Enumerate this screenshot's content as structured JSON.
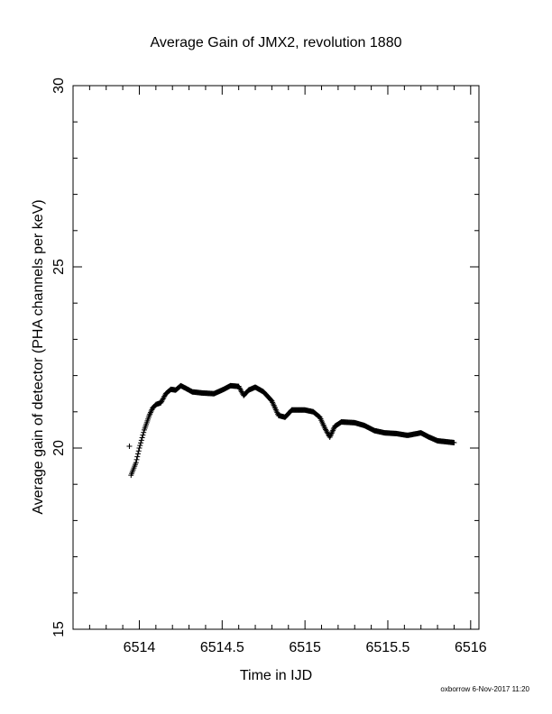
{
  "chart_data": {
    "type": "scatter",
    "title": "Average Gain of JMX2, revolution 1880",
    "xlabel": "Time in IJD",
    "ylabel": "Average gain of detector (PHA channels per keV)",
    "xlim": [
      6513.6,
      6516.05
    ],
    "ylim": [
      15,
      30
    ],
    "x_ticks": [
      6514,
      6514.5,
      6515,
      6515.5,
      6516
    ],
    "x_tick_labels": [
      "6514",
      "6514.5",
      "6515",
      "6515.5",
      "6516"
    ],
    "y_ticks": [
      15,
      20,
      25,
      30
    ],
    "y_tick_labels": [
      "15",
      "20",
      "25",
      "30"
    ],
    "marker": "plus",
    "grid": false,
    "series": [
      {
        "values_curve": [
          [
            6513.95,
            19.25
          ],
          [
            6513.98,
            19.6
          ],
          [
            6514.0,
            20.0
          ],
          [
            6514.03,
            20.5
          ],
          [
            6514.06,
            20.9
          ],
          [
            6514.08,
            21.1
          ],
          [
            6514.1,
            21.2
          ],
          [
            6514.13,
            21.25
          ],
          [
            6514.16,
            21.5
          ],
          [
            6514.19,
            21.62
          ],
          [
            6514.22,
            21.6
          ],
          [
            6514.25,
            21.72
          ],
          [
            6514.28,
            21.65
          ],
          [
            6514.32,
            21.55
          ],
          [
            6514.38,
            21.52
          ],
          [
            6514.45,
            21.5
          ],
          [
            6514.5,
            21.6
          ],
          [
            6514.55,
            21.72
          ],
          [
            6514.6,
            21.7
          ],
          [
            6514.63,
            21.45
          ],
          [
            6514.66,
            21.6
          ],
          [
            6514.7,
            21.68
          ],
          [
            6514.75,
            21.55
          ],
          [
            6514.8,
            21.3
          ],
          [
            6514.84,
            20.9
          ],
          [
            6514.88,
            20.85
          ],
          [
            6514.92,
            21.05
          ],
          [
            6515.0,
            21.05
          ],
          [
            6515.05,
            21.0
          ],
          [
            6515.09,
            20.85
          ],
          [
            6515.12,
            20.55
          ],
          [
            6515.15,
            20.3
          ],
          [
            6515.18,
            20.6
          ],
          [
            6515.22,
            20.72
          ],
          [
            6515.3,
            20.7
          ],
          [
            6515.36,
            20.62
          ],
          [
            6515.42,
            20.48
          ],
          [
            6515.48,
            20.42
          ],
          [
            6515.55,
            20.4
          ],
          [
            6515.62,
            20.35
          ],
          [
            6515.7,
            20.42
          ],
          [
            6515.75,
            20.3
          ],
          [
            6515.8,
            20.2
          ],
          [
            6515.9,
            20.15
          ]
        ],
        "outliers": [
          [
            6513.94,
            20.05
          ]
        ]
      }
    ]
  },
  "credit": "oxborrow  6-Nov-2017 11:20"
}
